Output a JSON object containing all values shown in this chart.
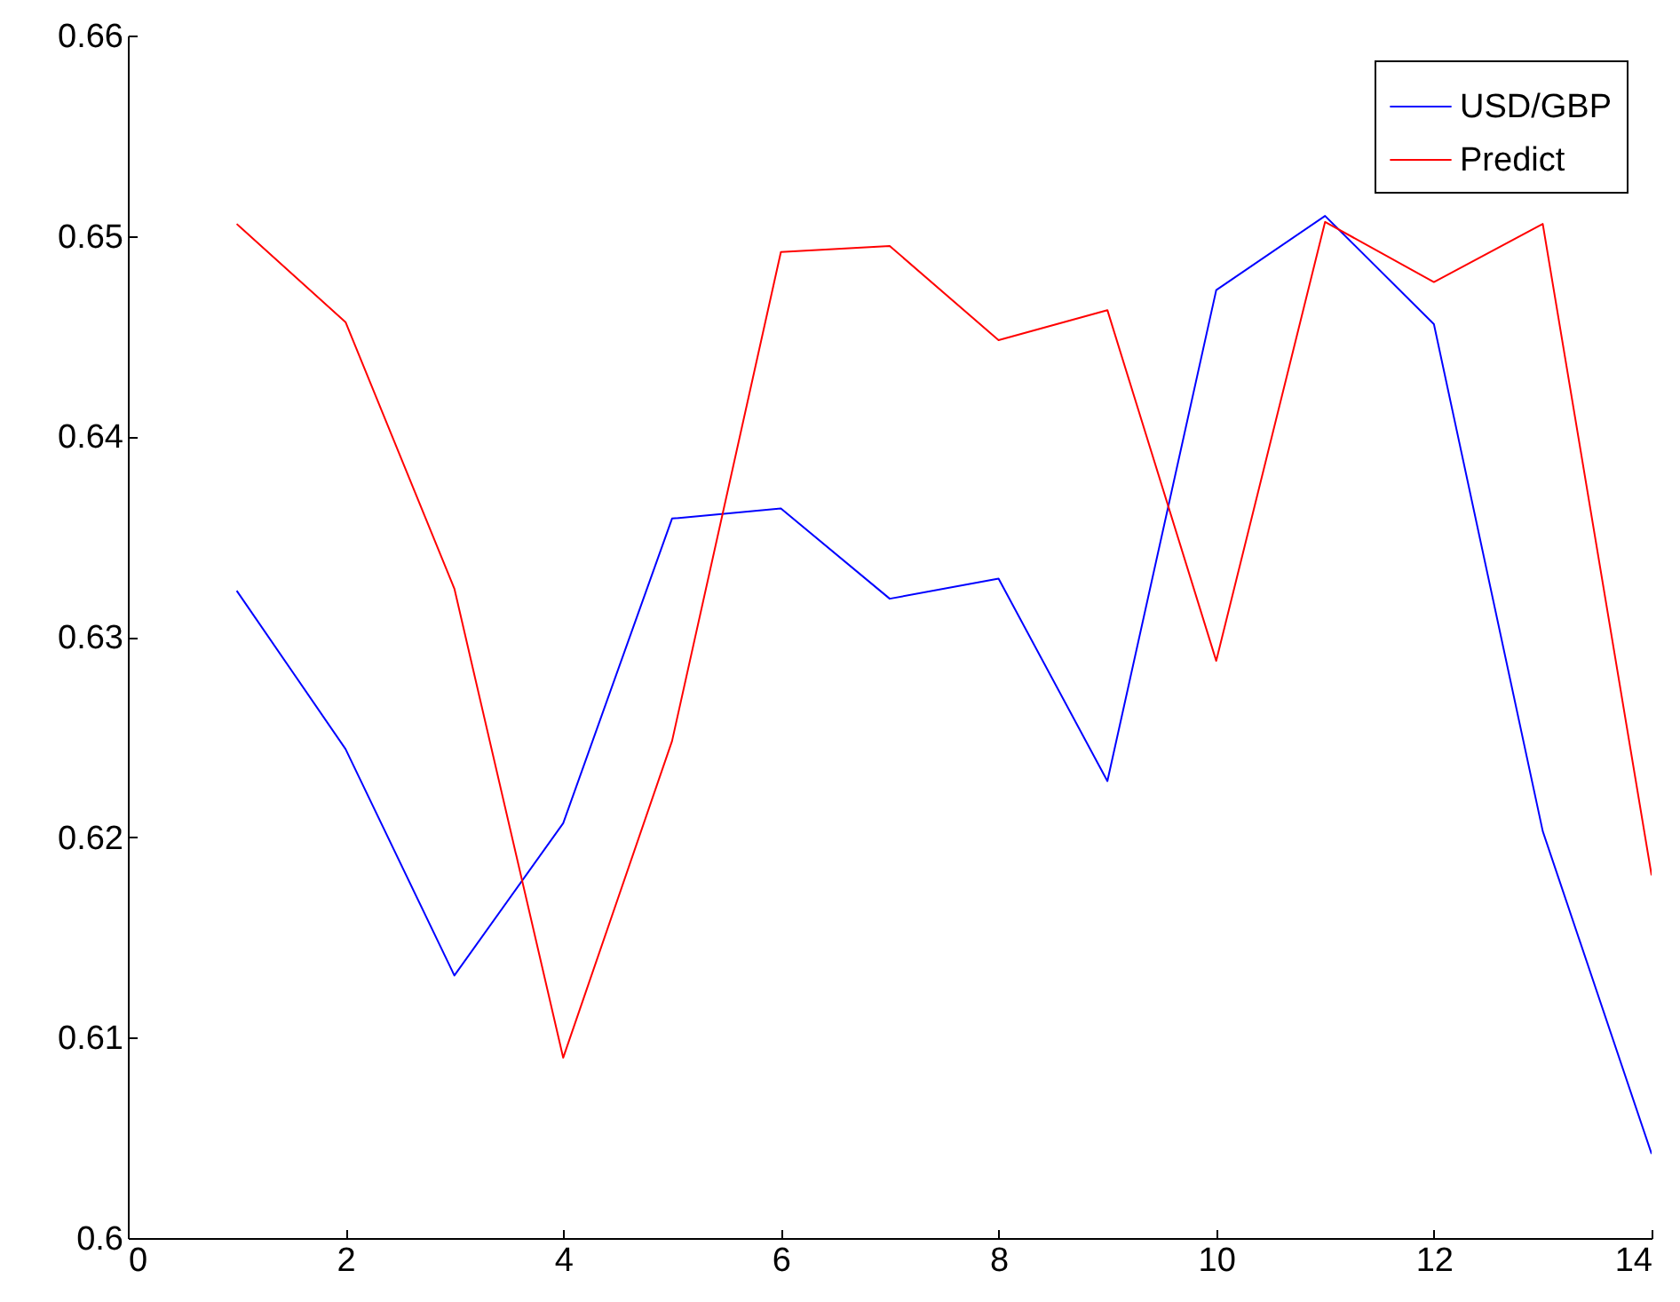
{
  "chart_data": {
    "type": "line",
    "x": [
      1,
      2,
      3,
      4,
      5,
      6,
      7,
      8,
      9,
      10,
      11,
      12,
      13,
      14
    ],
    "series": [
      {
        "name": "USD/GBP",
        "color": "#0000ff",
        "values": [
          0.6323,
          0.6244,
          0.6131,
          0.6207,
          0.6359,
          0.6364,
          0.6319,
          0.6329,
          0.6228,
          0.6473,
          0.651,
          0.6456,
          0.6203,
          0.6042
        ]
      },
      {
        "name": "Predict",
        "color": "#ff0000",
        "values": [
          0.6506,
          0.6457,
          0.6324,
          0.609,
          0.6248,
          0.6492,
          0.6495,
          0.6448,
          0.6463,
          0.6288,
          0.6507,
          0.6477,
          0.6506,
          0.6181
        ]
      }
    ],
    "xlim": [
      0,
      14
    ],
    "xticks": [
      0,
      2,
      4,
      6,
      8,
      10,
      12,
      14
    ],
    "ylim": [
      0.6,
      0.66
    ],
    "yticks": [
      0.6,
      0.61,
      0.62,
      0.63,
      0.64,
      0.65,
      0.66
    ],
    "legend": "top right",
    "grid": false,
    "marker": "none",
    "line_style": "solid"
  }
}
